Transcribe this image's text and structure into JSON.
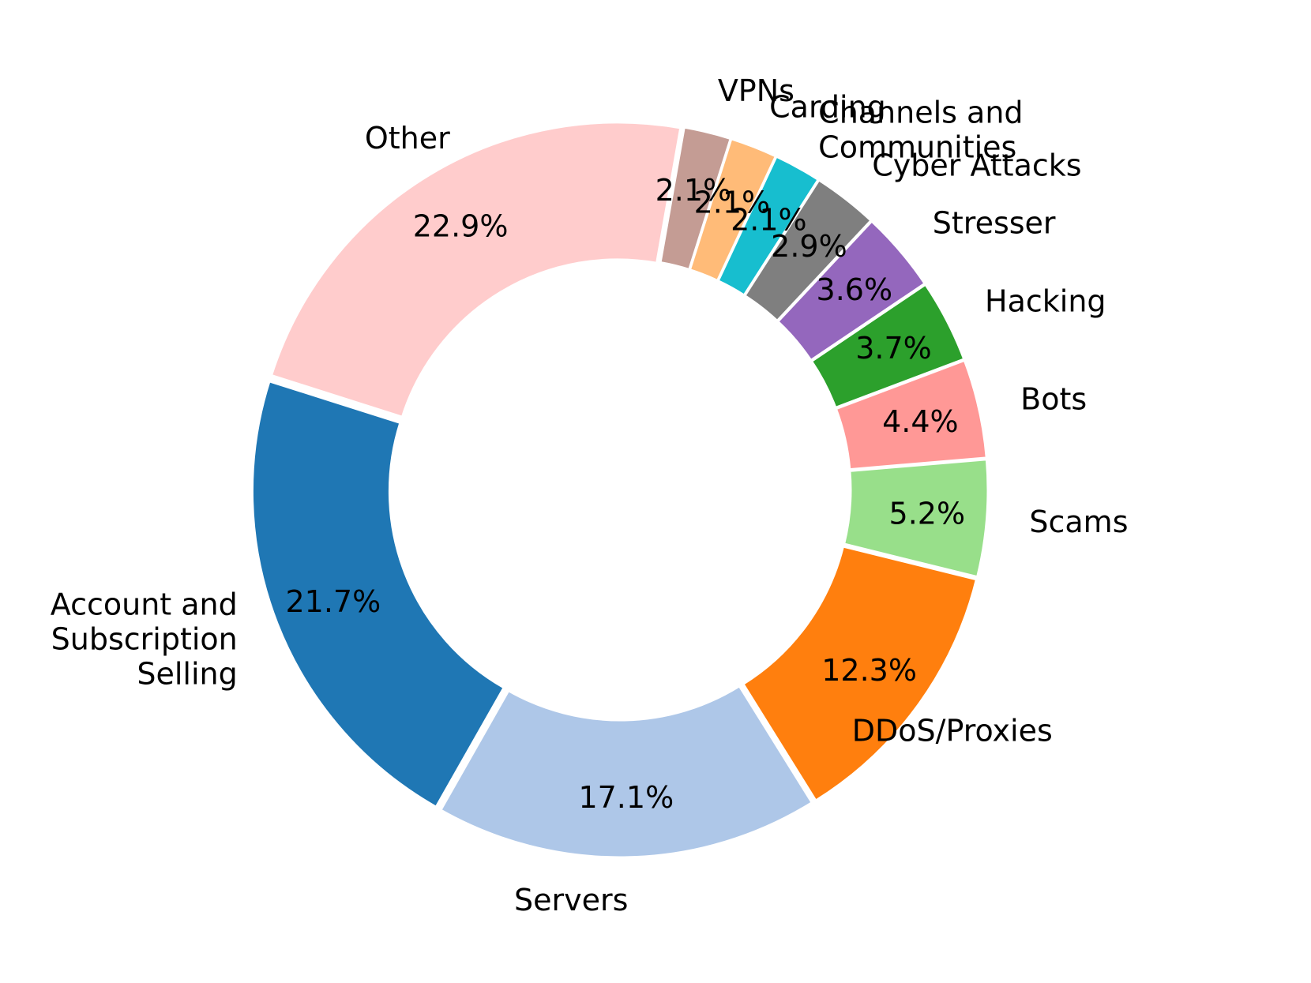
{
  "chart_data": {
    "type": "pie",
    "variant": "donut",
    "title": "",
    "start_angle_deg": 80,
    "direction": "counterclockwise",
    "slices": [
      {
        "label": [
          "Other"
        ],
        "value": 22.9,
        "pct_label": "22.9%",
        "color": "#ffcccc",
        "label_align": "middle"
      },
      {
        "label": [
          "Account and",
          "Subscription",
          "Selling"
        ],
        "value": 21.7,
        "pct_label": "21.7%",
        "color": "#1f77b4",
        "label_align": "end"
      },
      {
        "label": [
          "Servers"
        ],
        "value": 17.1,
        "pct_label": "17.1%",
        "color": "#aec7e8",
        "label_align": "end"
      },
      {
        "label": [
          "DDoS/Proxies"
        ],
        "value": 12.3,
        "pct_label": "12.3%",
        "color": "#ff7f0e",
        "label_align": "middle"
      },
      {
        "label": [
          "Scams"
        ],
        "value": 5.2,
        "pct_label": "5.2%",
        "color": "#98df8a",
        "label_align": "start"
      },
      {
        "label": [
          "Bots"
        ],
        "value": 4.4,
        "pct_label": "4.4%",
        "color": "#ff9896",
        "label_align": "start"
      },
      {
        "label": [
          "Hacking"
        ],
        "value": 3.7,
        "pct_label": "3.7%",
        "color": "#2ca02c",
        "label_align": "start"
      },
      {
        "label": [
          "Stresser"
        ],
        "value": 3.6,
        "pct_label": "3.6%",
        "color": "#9467bd",
        "label_align": "start"
      },
      {
        "label": [
          "Cyber Attacks"
        ],
        "value": 2.9,
        "pct_label": "2.9%",
        "color": "#7f7f7f",
        "label_align": "start"
      },
      {
        "label": [
          "Channels and",
          "Communities"
        ],
        "value": 2.1,
        "pct_label": "2.1%",
        "color": "#17becf",
        "label_align": "start"
      },
      {
        "label": [
          "Carding"
        ],
        "value": 2.1,
        "pct_label": "2.1%",
        "color": "#ffbb78",
        "label_align": "start"
      },
      {
        "label": [
          "VPNs"
        ],
        "value": 2.1,
        "pct_label": "2.1%",
        "color": "#c49c94",
        "label_align": "start"
      }
    ]
  }
}
